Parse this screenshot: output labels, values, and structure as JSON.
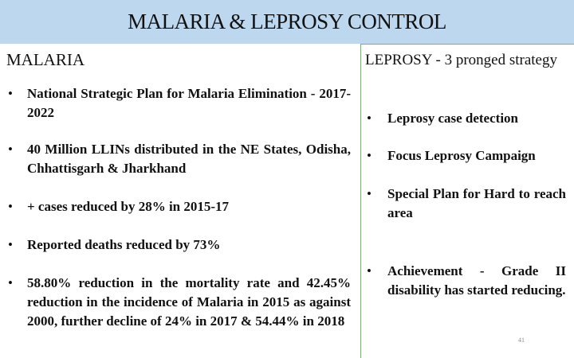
{
  "header": {
    "title": "MALARIA & LEPROSY CONTROL"
  },
  "left": {
    "heading": "MALARIA",
    "bullets": [
      "National Strategic Plan for Malaria Elimination - 2017-2022",
      "40 Million LLINs distributed in the NE States, Odisha, Chhattisgarh & Jharkhand",
      "+ cases reduced by 28% in 2015-17",
      "Reported deaths reduced by 73%",
      "58.80% reduction in the mortality rate and 42.45% reduction in the incidence of Malaria in 2015 as against 2000, further decline of 24% in 2017 & 54.44% in 2018"
    ]
  },
  "right": {
    "heading": "LEPROSY - 3 pronged strategy",
    "bullets": [
      "Leprosy case detection",
      "Focus Leprosy Campaign",
      "Special Plan for Hard to reach area",
      "Achievement - Grade II disability has started reducing."
    ]
  },
  "page_number": "41"
}
